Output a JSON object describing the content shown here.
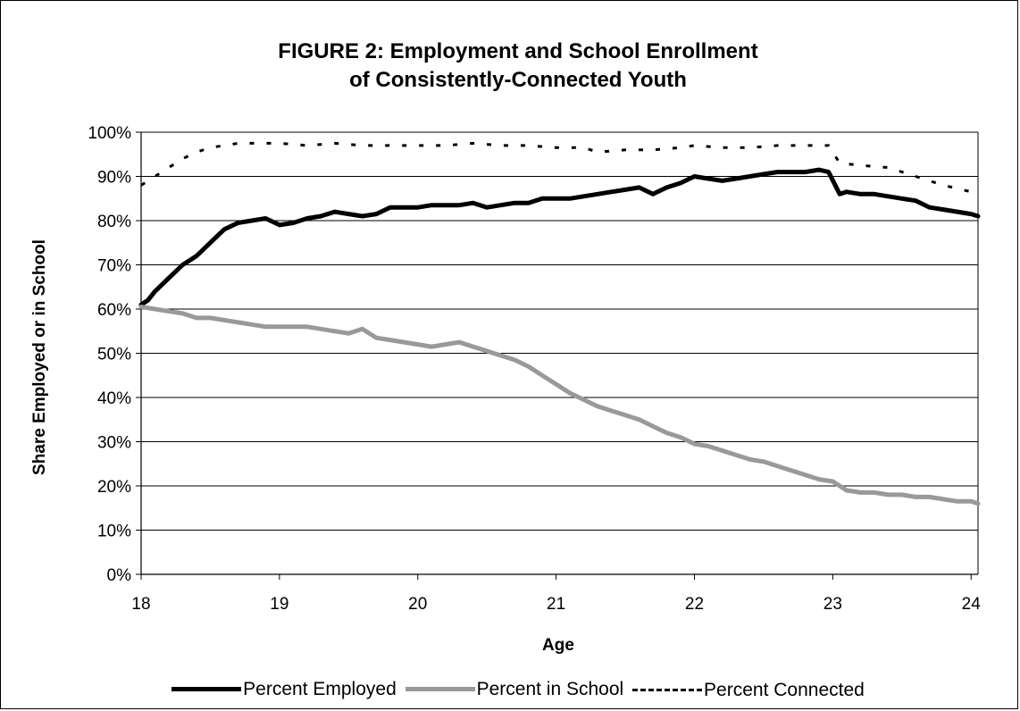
{
  "chart_data": {
    "type": "line",
    "title": [
      "FIGURE 2: Employment and School Enrollment",
      "of Consistently-Connected Youth"
    ],
    "xlabel": "Age",
    "ylabel": "Share Employed or in School",
    "xlim": [
      18,
      24.05
    ],
    "ylim": [
      0,
      100
    ],
    "x_ticks": [
      "18",
      "19",
      "20",
      "21",
      "22",
      "23",
      "24"
    ],
    "y_ticks": [
      "0%",
      "10%",
      "20%",
      "30%",
      "40%",
      "50%",
      "60%",
      "70%",
      "80%",
      "90%",
      "100%"
    ],
    "grid": "horizontal",
    "legend_position": "bottom",
    "series": [
      {
        "name": "Percent Employed",
        "color": "#000000",
        "style": "solid",
        "x": [
          18.0,
          18.05,
          18.1,
          18.2,
          18.3,
          18.4,
          18.5,
          18.6,
          18.7,
          18.8,
          18.9,
          19.0,
          19.1,
          19.2,
          19.3,
          19.4,
          19.5,
          19.6,
          19.7,
          19.8,
          19.9,
          20.0,
          20.1,
          20.2,
          20.3,
          20.4,
          20.5,
          20.6,
          20.7,
          20.8,
          20.9,
          21.0,
          21.1,
          21.2,
          21.3,
          21.4,
          21.5,
          21.6,
          21.7,
          21.8,
          21.9,
          22.0,
          22.1,
          22.2,
          22.3,
          22.4,
          22.5,
          22.6,
          22.7,
          22.8,
          22.9,
          22.97,
          23.05,
          23.1,
          23.2,
          23.3,
          23.4,
          23.5,
          23.6,
          23.7,
          23.8,
          23.9,
          24.0,
          24.05
        ],
        "y": [
          61,
          62,
          64,
          67,
          70,
          72,
          75,
          78,
          79.5,
          80,
          80.5,
          79,
          79.5,
          80.5,
          81,
          82,
          81.5,
          81,
          81.5,
          83,
          83,
          83,
          83.5,
          83.5,
          83.5,
          84,
          83,
          83.5,
          84,
          84,
          85,
          85,
          85,
          85.5,
          86,
          86.5,
          87,
          87.5,
          86,
          87.5,
          88.5,
          90,
          89.5,
          89,
          89.5,
          90,
          90.5,
          91,
          91,
          91,
          91.5,
          91,
          86,
          86.5,
          86,
          86,
          85.5,
          85,
          84.5,
          83,
          82.5,
          82,
          81.5,
          81
        ]
      },
      {
        "name": "Percent in School",
        "color": "#999999",
        "style": "solid",
        "x": [
          18.0,
          18.1,
          18.2,
          18.3,
          18.4,
          18.5,
          18.6,
          18.7,
          18.8,
          18.9,
          19.0,
          19.1,
          19.2,
          19.3,
          19.4,
          19.5,
          19.6,
          19.7,
          19.8,
          19.9,
          20.0,
          20.1,
          20.2,
          20.3,
          20.4,
          20.5,
          20.6,
          20.7,
          20.8,
          20.9,
          21.0,
          21.1,
          21.2,
          21.3,
          21.4,
          21.5,
          21.6,
          21.7,
          21.8,
          21.9,
          22.0,
          22.1,
          22.2,
          22.3,
          22.4,
          22.5,
          22.6,
          22.7,
          22.8,
          22.9,
          23.0,
          23.1,
          23.2,
          23.3,
          23.4,
          23.5,
          23.6,
          23.7,
          23.8,
          23.9,
          24.0,
          24.05
        ],
        "y": [
          60.5,
          60,
          59.5,
          59,
          58,
          58,
          57.5,
          57,
          56.5,
          56,
          56,
          56,
          56,
          55.5,
          55,
          54.5,
          55.5,
          53.5,
          53,
          52.5,
          52,
          51.5,
          52,
          52.5,
          51.5,
          50.5,
          49.5,
          48.5,
          47,
          45,
          43,
          41,
          39.5,
          38,
          37,
          36,
          35,
          33.5,
          32,
          31,
          29.5,
          29,
          28,
          27,
          26,
          25.5,
          24.5,
          23.5,
          22.5,
          21.5,
          21,
          19,
          18.5,
          18.5,
          18,
          18,
          17.5,
          17.5,
          17,
          16.5,
          16.5,
          16
        ]
      },
      {
        "name": "Percent Connected",
        "color": "#000000",
        "style": "dashed",
        "x": [
          18.0,
          18.1,
          18.2,
          18.3,
          18.4,
          18.5,
          18.6,
          18.7,
          18.8,
          18.9,
          19.0,
          19.2,
          19.4,
          19.6,
          19.8,
          20.0,
          20.2,
          20.4,
          20.6,
          20.8,
          21.0,
          21.2,
          21.3,
          21.5,
          21.7,
          21.9,
          22.0,
          22.2,
          22.4,
          22.6,
          22.8,
          22.97,
          23.05,
          23.2,
          23.4,
          23.6,
          23.8,
          24.0,
          24.05
        ],
        "y": [
          88,
          90,
          92,
          94,
          95.5,
          96.5,
          97,
          97.5,
          97.5,
          97.5,
          97.5,
          97,
          97.5,
          97,
          97,
          97,
          97,
          97.5,
          97,
          97,
          96.5,
          96.5,
          95.5,
          96,
          96,
          96.5,
          97,
          96.5,
          96.5,
          97,
          97,
          97,
          93,
          92.5,
          92,
          90,
          88,
          86.5,
          86
        ]
      }
    ]
  }
}
